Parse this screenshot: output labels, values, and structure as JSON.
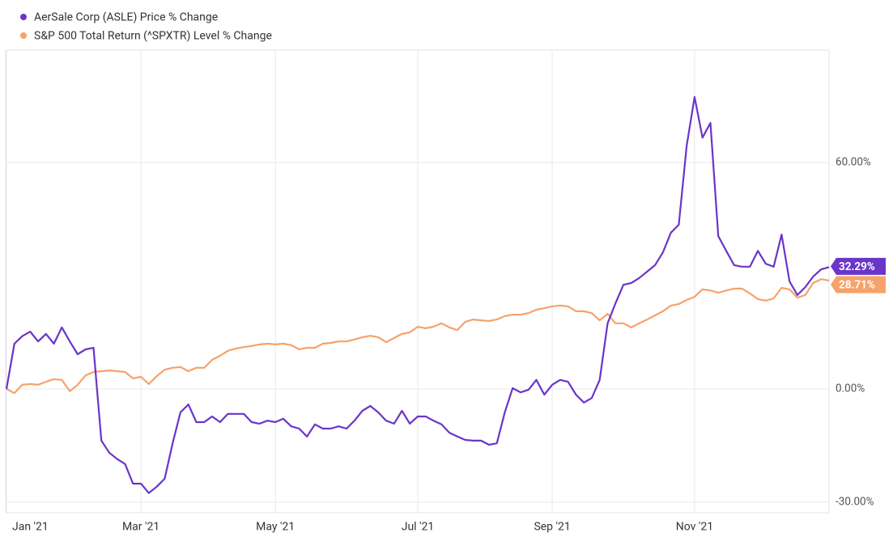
{
  "chart_data": {
    "type": "line",
    "legend": "top-left",
    "grid": true,
    "categories": [
      "Jan '21",
      null,
      null,
      null,
      null,
      null,
      null,
      null,
      null,
      null,
      null,
      null,
      null,
      null,
      null,
      null,
      null,
      "Mar '21",
      null,
      null,
      null,
      null,
      null,
      null,
      null,
      null,
      null,
      null,
      null,
      null,
      null,
      null,
      null,
      null,
      "May '21",
      null,
      null,
      null,
      null,
      null,
      null,
      null,
      null,
      null,
      null,
      null,
      null,
      null,
      null,
      null,
      null,
      null,
      "Jul '21",
      null,
      null,
      null,
      null,
      null,
      null,
      null,
      null,
      null,
      null,
      null,
      null,
      null,
      null,
      null,
      null,
      "Sep '21",
      null,
      null,
      null,
      null,
      null,
      null,
      null,
      null,
      null,
      null,
      null,
      null,
      null,
      null,
      null,
      null,
      null,
      "Nov '21",
      null,
      null,
      null,
      null,
      null,
      null,
      null,
      null,
      null,
      null,
      null,
      null,
      null,
      null,
      null,
      null,
      null
    ],
    "ylim": [
      -32.8,
      89.8
    ],
    "yticks": [
      {
        "value": -30,
        "label": "-30.00%"
      },
      {
        "value": 0,
        "label": "0.00%"
      },
      {
        "value": 60,
        "label": "60.00%"
      }
    ],
    "series": [
      {
        "name": "AerSale Corp (ASLE) Price % Change",
        "color": "#6a35c9",
        "values": [
          0,
          12,
          14,
          15.2,
          12.6,
          14.6,
          12,
          16.3,
          12.6,
          9.2,
          10.5,
          10.9,
          -13.7,
          -16.9,
          -18.6,
          -19.9,
          -25.1,
          -25.1,
          -27.6,
          -25.9,
          -23.8,
          -14.4,
          -6.2,
          -4.1,
          -8.8,
          -8.8,
          -7.3,
          -8.8,
          -6.6,
          -6.6,
          -6.6,
          -8.8,
          -9.2,
          -8.4,
          -8.8,
          -7.9,
          -9.9,
          -10.5,
          -12.6,
          -9.4,
          -10.5,
          -10.5,
          -9.9,
          -10.5,
          -8.4,
          -5.8,
          -4.5,
          -6.2,
          -8.4,
          -9.2,
          -5.8,
          -9.2,
          -7.3,
          -7.3,
          -8.4,
          -9.4,
          -11.6,
          -12.6,
          -13.5,
          -13.7,
          -13.7,
          -14.8,
          -14.4,
          -6.2,
          0.2,
          -0.9,
          -0.2,
          2.4,
          -1.5,
          1.1,
          2.4,
          1.9,
          -1.5,
          -3.6,
          -2.4,
          2.4,
          17.4,
          22.7,
          27.6,
          28.1,
          29.4,
          31.1,
          32.8,
          36.2,
          41.4,
          43.5,
          64.5,
          77.4,
          66.6,
          70.5,
          40.5,
          36.6,
          32.8,
          32.4,
          32.4,
          36.6,
          33.2,
          32.4,
          40.9,
          28.5,
          24.9,
          27.0,
          29.8,
          31.7,
          32.29
        ],
        "value_labels": [
          null,
          null,
          null,
          null,
          null,
          null,
          null,
          null,
          null,
          null,
          null,
          null,
          null,
          null,
          null,
          null,
          null,
          null,
          null,
          null,
          null,
          null,
          null,
          null,
          null,
          null,
          null,
          null,
          null,
          null,
          null,
          null,
          null,
          null,
          null,
          null,
          null,
          null,
          null,
          null,
          null,
          null,
          null,
          null,
          null,
          null,
          null,
          null,
          null,
          null,
          null,
          null,
          null,
          null,
          null,
          null,
          null,
          null,
          null,
          null,
          null,
          null,
          null,
          null,
          null,
          null,
          null,
          null,
          null,
          null,
          null,
          null,
          null,
          null,
          null,
          null,
          null,
          null,
          null,
          null,
          null,
          null,
          null,
          null,
          null,
          null,
          null,
          null,
          null,
          null,
          null,
          null,
          null,
          null,
          null,
          null,
          null,
          null,
          null,
          null,
          null,
          null,
          null,
          null,
          "32.29%"
        ]
      },
      {
        "name": "S&P 500 Total Return (^SPXTR) Level % Change",
        "color": "#f6a26b",
        "values": [
          0,
          -1.1,
          1.1,
          1.3,
          1.1,
          1.9,
          2.6,
          2.4,
          -0.6,
          1.1,
          3.6,
          4.5,
          4.7,
          4.9,
          4.7,
          4.5,
          2.8,
          3.2,
          1.3,
          3.4,
          5.1,
          5.6,
          5.8,
          4.7,
          5.6,
          5.6,
          7.7,
          8.8,
          10.1,
          10.7,
          11.1,
          11.4,
          11.8,
          12.0,
          11.8,
          12.0,
          11.6,
          10.5,
          10.9,
          10.9,
          12.0,
          12.2,
          12.6,
          12.6,
          13.1,
          13.7,
          14.1,
          13.7,
          12.4,
          13.5,
          14.6,
          15.0,
          16.5,
          16.1,
          16.5,
          17.4,
          16.3,
          15.6,
          17.8,
          18.4,
          18.2,
          18.0,
          18.4,
          19.3,
          19.7,
          19.7,
          20.1,
          21.0,
          21.4,
          21.9,
          22.1,
          21.9,
          20.6,
          20.6,
          20.1,
          18.2,
          19.9,
          17.4,
          17.4,
          16.3,
          17.4,
          18.4,
          19.5,
          20.6,
          22.1,
          22.5,
          23.6,
          24.4,
          26.4,
          26.1,
          25.5,
          26.1,
          26.6,
          26.6,
          25.3,
          23.8,
          23.4,
          24.0,
          26.8,
          26.4,
          24.2,
          24.9,
          28.1,
          29.1,
          28.71
        ],
        "value_labels": [
          null,
          null,
          null,
          null,
          null,
          null,
          null,
          null,
          null,
          null,
          null,
          null,
          null,
          null,
          null,
          null,
          null,
          null,
          null,
          null,
          null,
          null,
          null,
          null,
          null,
          null,
          null,
          null,
          null,
          null,
          null,
          null,
          null,
          null,
          null,
          null,
          null,
          null,
          null,
          null,
          null,
          null,
          null,
          null,
          null,
          null,
          null,
          null,
          null,
          null,
          null,
          null,
          null,
          null,
          null,
          null,
          null,
          null,
          null,
          null,
          null,
          null,
          null,
          null,
          null,
          null,
          null,
          null,
          null,
          null,
          null,
          null,
          null,
          null,
          null,
          null,
          null,
          null,
          null,
          null,
          null,
          null,
          null,
          null,
          null,
          null,
          null,
          null,
          null,
          null,
          null,
          null,
          null,
          null,
          null,
          null,
          null,
          null,
          null,
          null,
          null,
          null,
          null,
          null,
          "28.71%"
        ]
      }
    ]
  }
}
